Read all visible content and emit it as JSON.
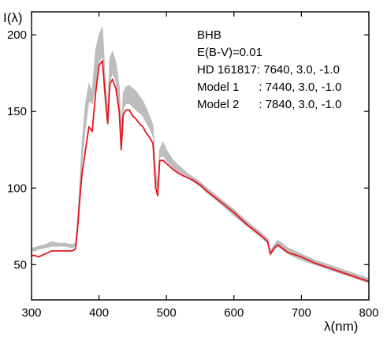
{
  "chart_data": {
    "type": "line",
    "title": "",
    "xlabel": "λ(nm)",
    "ylabel": "I(λ)",
    "xlim": [
      300,
      800
    ],
    "ylim": [
      27,
      215
    ],
    "xticks": [
      300,
      400,
      500,
      600,
      700,
      800
    ],
    "yticks": [
      50,
      100,
      150,
      200
    ],
    "grid": false,
    "legend": "none",
    "annotations": [
      "BHB",
      "E(B-V)=0.01",
      "HD 161817: 7640, 3.0, -1.0",
      "Model 1      : 7440, 3.0, -1.0",
      "Model 2      : 7840, 3.0, -1.0"
    ],
    "colors": {
      "observed": "#e8141c",
      "model_band": "#bdbdbd",
      "axes": "#000000"
    },
    "series": [
      {
        "role": "observed",
        "style": "line",
        "x": [
          300,
          305,
          310,
          320,
          330,
          340,
          350,
          360,
          365,
          368,
          371,
          375,
          380,
          385,
          390,
          395,
          400,
          405,
          410,
          413,
          416,
          420,
          425,
          430,
          433,
          436,
          440,
          445,
          450,
          455,
          460,
          465,
          470,
          475,
          480,
          484,
          487,
          490,
          495,
          500,
          510,
          520,
          530,
          540,
          550,
          560,
          580,
          600,
          620,
          640,
          650,
          654,
          657,
          660,
          665,
          680,
          700,
          720,
          740,
          760,
          780,
          800
        ],
        "y": [
          56,
          56,
          55,
          57,
          59,
          59,
          59,
          59,
          60,
          72,
          90,
          110,
          125,
          140,
          137,
          162,
          180,
          183,
          155,
          142,
          168,
          171,
          165,
          150,
          125,
          148,
          151,
          151,
          147,
          145,
          142,
          140,
          136,
          133,
          129,
          100,
          95,
          118,
          118,
          116,
          112,
          109,
          107,
          105,
          102,
          98,
          91,
          84,
          76,
          69,
          65,
          57,
          59,
          61,
          63,
          58,
          55,
          51,
          48,
          45,
          42,
          39
        ]
      },
      {
        "role": "model_band",
        "style": "band",
        "x": [
          300,
          305,
          310,
          320,
          330,
          340,
          350,
          360,
          365,
          368,
          371,
          375,
          380,
          385,
          390,
          395,
          400,
          405,
          410,
          413,
          416,
          420,
          425,
          430,
          433,
          436,
          440,
          445,
          450,
          455,
          460,
          465,
          470,
          475,
          480,
          484,
          487,
          490,
          495,
          500,
          510,
          520,
          530,
          540,
          550,
          560,
          580,
          600,
          620,
          640,
          650,
          654,
          657,
          660,
          665,
          680,
          700,
          720,
          740,
          760,
          780,
          800
        ],
        "lower": [
          59,
          59,
          60,
          61,
          62,
          62,
          62,
          61,
          62,
          73,
          92,
          118,
          140,
          157,
          155,
          168,
          182,
          187,
          157,
          144,
          170,
          175,
          170,
          155,
          129,
          152,
          155,
          155,
          153,
          151,
          149,
          147,
          143,
          139,
          134,
          104,
          98,
          120,
          121,
          118,
          113,
          110,
          108,
          104,
          101,
          97,
          90,
          82,
          75,
          68,
          64,
          56,
          58,
          60,
          62,
          57,
          53,
          50,
          47,
          44,
          41,
          38
        ],
        "upper": [
          61,
          61,
          62,
          63,
          65,
          64,
          64,
          63,
          64,
          77,
          100,
          130,
          155,
          168,
          163,
          190,
          200,
          205,
          166,
          150,
          185,
          189,
          182,
          166,
          138,
          162,
          166,
          167,
          165,
          163,
          160,
          157,
          152,
          147,
          141,
          111,
          103,
          125,
          130,
          125,
          118,
          114,
          110,
          107,
          104,
          100,
          93,
          86,
          78,
          71,
          67,
          59,
          61,
          63,
          66,
          61,
          57,
          53,
          50,
          47,
          44,
          41
        ]
      }
    ]
  }
}
